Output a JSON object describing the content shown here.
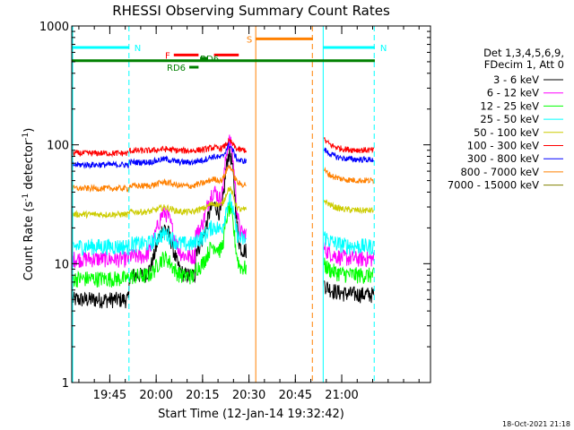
{
  "chart_data": {
    "type": "line",
    "title": "RHESSI Observing Summary Count Rates",
    "xlabel": "Start Time (12-Jan-14 19:32:42)",
    "ylabel_main": "Count Rate (s",
    "ylabel_exp1": "-1",
    "ylabel_mid": " detector",
    "ylabel_exp2": "-1",
    "ylabel_end": ")",
    "yscale": "log",
    "ylim": [
      1,
      1000
    ],
    "xlim_minutes": [
      0,
      116
    ],
    "y_ticks": [
      {
        "value": 1,
        "label": "1"
      },
      {
        "value": 10,
        "label": "10"
      },
      {
        "value": 100,
        "label": "100"
      },
      {
        "value": 1000,
        "label": "1000"
      }
    ],
    "x_ticks": [
      {
        "minute": 12.3,
        "label": "19:45"
      },
      {
        "minute": 27.3,
        "label": "20:00"
      },
      {
        "minute": 42.3,
        "label": "20:15"
      },
      {
        "minute": 57.3,
        "label": "20:30"
      },
      {
        "minute": 72.3,
        "label": "20:45"
      },
      {
        "minute": 87.3,
        "label": "21:00"
      }
    ],
    "legend_header": [
      "Det 1,3,4,5,6,9,",
      "FDecim 1, Att 0"
    ],
    "series": [
      {
        "name": "3 - 6 keV",
        "color": "#000000",
        "pre": 5.0,
        "post": 5.5
      },
      {
        "name": "6 - 12 keV",
        "color": "#ff00ff",
        "pre": 11.0,
        "post": 11.0
      },
      {
        "name": "12 - 25 keV",
        "color": "#00ff00",
        "pre": 7.5,
        "post": 8.0
      },
      {
        "name": "25 - 50 keV",
        "color": "#00ffff",
        "pre": 14.0,
        "post": 14.0
      },
      {
        "name": "50 - 100 keV",
        "color": "#cccc00",
        "pre": 26.0,
        "post": 28.0
      },
      {
        "name": "100 - 300 keV",
        "color": "#ff0000",
        "pre": 85.0,
        "post": 90.0
      },
      {
        "name": "300 - 800 keV",
        "color": "#0000ff",
        "pre": 68.0,
        "post": 75.0
      },
      {
        "name": "800 - 7000 keV",
        "color": "#ff8000",
        "pre": 43.0,
        "post": 50.0
      },
      {
        "name": "7000 - 15000 keV",
        "color": "#808000",
        "pre": null,
        "post": null
      }
    ],
    "peak_times_minutes": [
      30,
      46,
      51
    ],
    "flag_bars": [
      {
        "label": "N",
        "color": "#00ffff",
        "start": 0,
        "end": 18.5,
        "value": 660
      },
      {
        "label": "N",
        "color": "#00ffff",
        "start": 81.3,
        "end": 98,
        "value": 660
      },
      {
        "label": "F",
        "color": "#ff0000",
        "start": 33,
        "end": 41,
        "value": 570
      },
      {
        "label": "",
        "color": "#ff0000",
        "start": 46,
        "end": 54,
        "value": 570
      },
      {
        "label": "S",
        "color": "#ff8000",
        "start": 59.5,
        "end": 78,
        "value": 780
      },
      {
        "label": "RD6",
        "color": "#008000",
        "start": 38,
        "end": 41,
        "value": 450
      },
      {
        "label": "RD6",
        "color": "#008000",
        "start": 41.5,
        "end": 44,
        "value": 535
      },
      {
        "label": "",
        "color": "#008000",
        "start": 0,
        "end": 98,
        "value": 510
      }
    ],
    "vertical_lines": [
      {
        "minute": 0.3,
        "color": "#00ffff",
        "style": "solid"
      },
      {
        "minute": 18.5,
        "color": "#00ffff",
        "style": "dashed"
      },
      {
        "minute": 59.5,
        "color": "#ff8000",
        "style": "solid"
      },
      {
        "minute": 77.8,
        "color": "#ff8000",
        "style": "dashed"
      },
      {
        "minute": 81.3,
        "color": "#00ffff",
        "style": "solid"
      },
      {
        "minute": 97.8,
        "color": "#00ffff",
        "style": "dashed"
      }
    ],
    "data_gap_minutes": [
      59.5,
      81.3
    ],
    "data_start_minute": 0.3,
    "data_end_minute": 97.8
  },
  "footer_date": "18-Oct-2021 21:18"
}
